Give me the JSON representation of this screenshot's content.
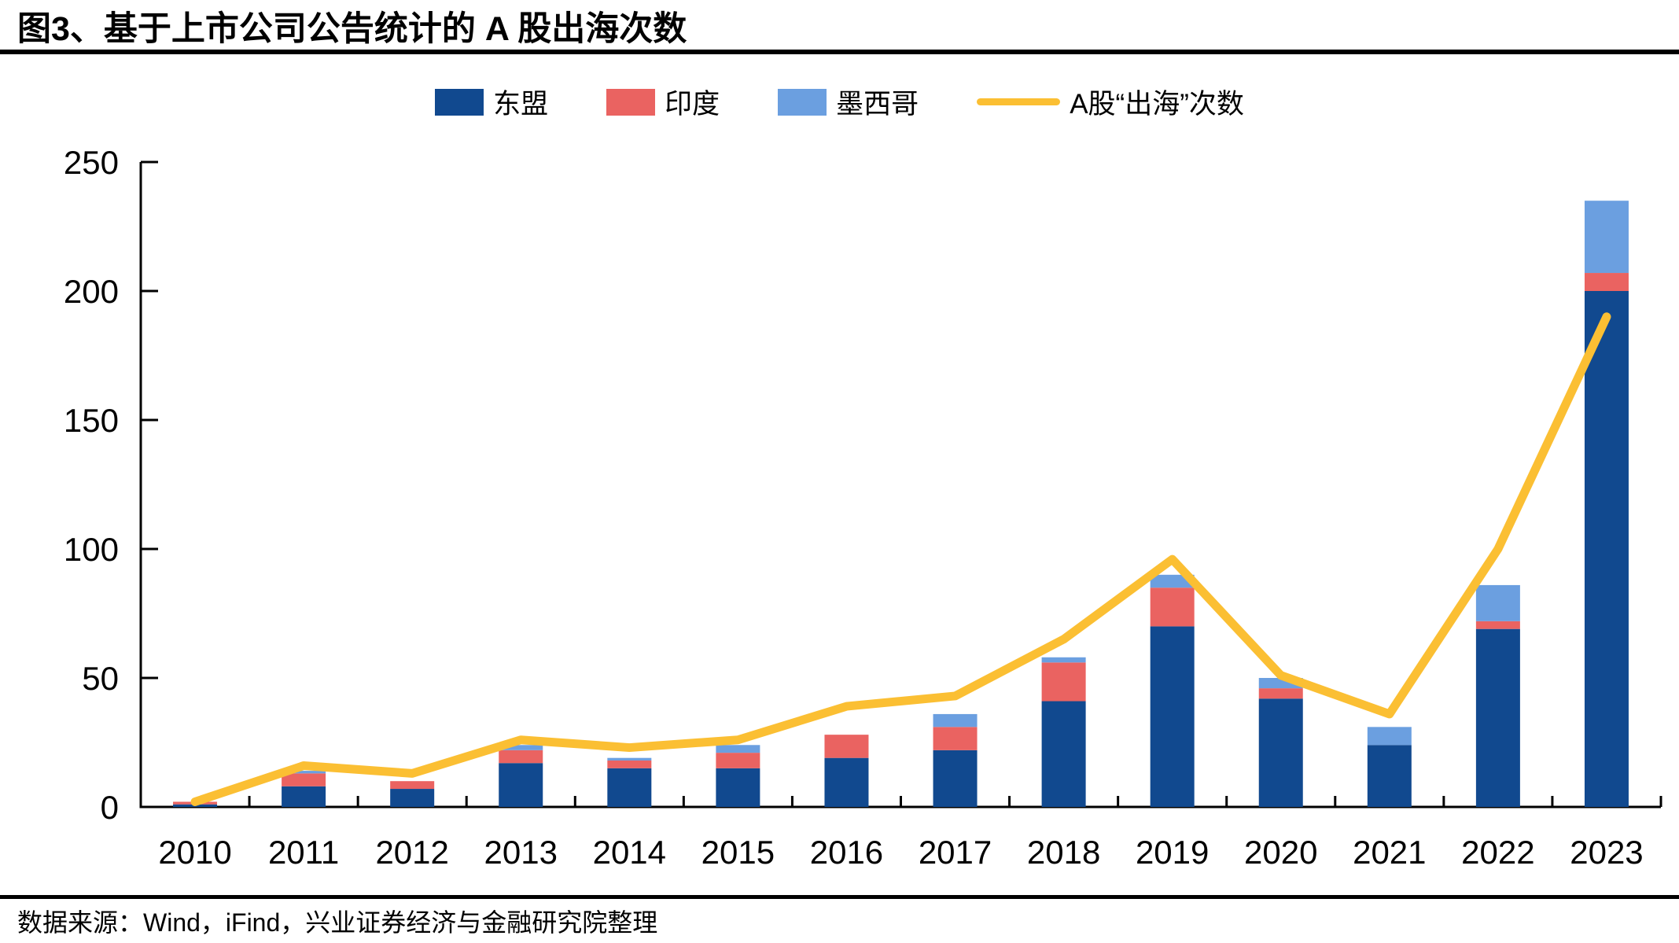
{
  "header": {
    "title": "图3、基于上市公司公告统计的 A 股出海次数"
  },
  "legend": [
    {
      "label": "东盟",
      "swatch": "box",
      "color": "#11498F"
    },
    {
      "label": "印度",
      "swatch": "box",
      "color": "#EA6361"
    },
    {
      "label": "墨西哥",
      "swatch": "box",
      "color": "#6B9FE0"
    },
    {
      "label": "A股“出海”次数",
      "swatch": "line",
      "color": "#FBBF33"
    }
  ],
  "chart_data": {
    "type": "bar+line",
    "title": "基于上市公司公告统计的A股出海次数",
    "categories": [
      "2010",
      "2011",
      "2012",
      "2013",
      "2014",
      "2015",
      "2016",
      "2017",
      "2018",
      "2019",
      "2020",
      "2021",
      "2022",
      "2023"
    ],
    "series": [
      {
        "name": "东盟",
        "key": "asean",
        "color": "#11498F",
        "values": [
          1,
          8,
          7,
          17,
          15,
          15,
          19,
          22,
          41,
          70,
          42,
          24,
          69,
          200
        ]
      },
      {
        "name": "印度",
        "key": "india",
        "color": "#EA6361",
        "values": [
          1,
          5,
          3,
          5,
          3,
          6,
          9,
          9,
          15,
          15,
          4,
          0,
          3,
          7
        ]
      },
      {
        "name": "墨西哥",
        "key": "mexico",
        "color": "#6B9FE0",
        "values": [
          0,
          1,
          0,
          2,
          1,
          3,
          0,
          5,
          2,
          5,
          4,
          7,
          14,
          28
        ]
      }
    ],
    "stacked": true,
    "line_series": {
      "name": "A股“出海”次数",
      "key": "total-line",
      "color": "#FBBF33",
      "values": [
        2,
        16,
        13,
        26,
        23,
        26,
        39,
        43,
        65,
        96,
        51,
        36,
        100,
        190
      ]
    },
    "xlabel": "",
    "ylabel": "",
    "ylim": [
      0,
      250
    ],
    "yticks": [
      0,
      50,
      100,
      150,
      200,
      250
    ],
    "grid": false,
    "legend_position": "top"
  },
  "footer": {
    "source": "数据来源：Wind，iFind，兴业证券经济与金融研究院整理"
  }
}
